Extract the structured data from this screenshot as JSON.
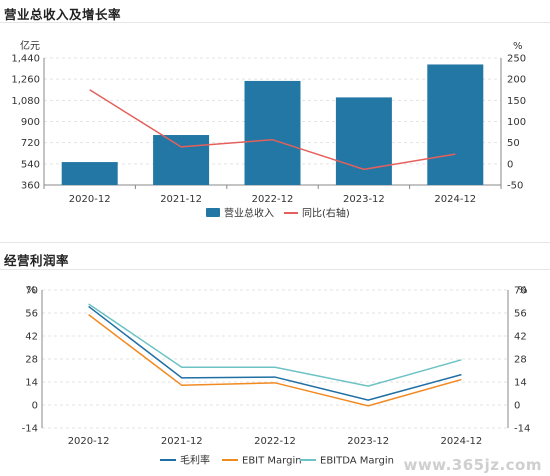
{
  "panel1": {
    "title": "营业总收入及增长率"
  },
  "panel2": {
    "title": "经营利润率"
  },
  "watermark": "www.365jz.com",
  "colors": {
    "bar": "#2377a4",
    "growth_line": "#e5605c",
    "gross_margin": "#1f6fa5",
    "ebit_margin": "#f28a22",
    "ebitda_margin": "#6cc2c4",
    "grid": "#e3e3e3",
    "axis": "#888888"
  },
  "chart_data": [
    {
      "type": "bar",
      "categories": [
        "2020-12",
        "2021-12",
        "2022-12",
        "2023-12",
        "2024-12"
      ],
      "series": [
        {
          "name": "营业总收入",
          "type": "bar",
          "axis": "left",
          "values": [
            555,
            785,
            1245,
            1105,
            1385
          ]
        },
        {
          "name": "同比(右轴)",
          "type": "line",
          "axis": "right",
          "values": [
            175,
            40,
            57,
            -13,
            23
          ]
        }
      ],
      "y_left": {
        "unit": "亿元",
        "min": 360,
        "max": 1440,
        "ticks": [
          360,
          540,
          720,
          900,
          1080,
          1260,
          1440
        ],
        "tick_labels": [
          "360",
          "540",
          "720",
          "900",
          "1,080",
          "1,260",
          "1,440"
        ]
      },
      "y_right": {
        "unit": "%",
        "min": -50,
        "max": 250,
        "ticks": [
          -50,
          0,
          50,
          100,
          150,
          200,
          250
        ],
        "tick_labels": [
          "-50",
          "0",
          "50",
          "100",
          "150",
          "200",
          "250"
        ]
      },
      "grid": true,
      "legend_position": "bottom"
    },
    {
      "type": "line",
      "categories": [
        "2020-12",
        "2021-12",
        "2022-12",
        "2023-12",
        "2024-12"
      ],
      "series": [
        {
          "name": "毛利率",
          "values": [
            60,
            16.5,
            17,
            3,
            18.5
          ]
        },
        {
          "name": "EBIT Margin",
          "values": [
            55,
            12,
            13.5,
            -0.5,
            15.5
          ]
        },
        {
          "name": "EBITDA Margin",
          "values": [
            61.5,
            23,
            23,
            11.5,
            27.5
          ]
        }
      ],
      "y_left": {
        "unit": "%",
        "min": -14,
        "max": 70,
        "ticks": [
          -14,
          0,
          14,
          28,
          42,
          56,
          70
        ],
        "tick_labels": [
          "-14",
          "0",
          "14",
          "28",
          "42",
          "56",
          "70"
        ]
      },
      "y_right": {
        "unit": "%",
        "min": -14,
        "max": 70,
        "ticks": [
          -14,
          0,
          14,
          28,
          42,
          56,
          70
        ],
        "tick_labels": [
          "-14",
          "0",
          "14",
          "28",
          "42",
          "56",
          "70"
        ]
      },
      "grid": true,
      "legend_position": "bottom"
    }
  ]
}
